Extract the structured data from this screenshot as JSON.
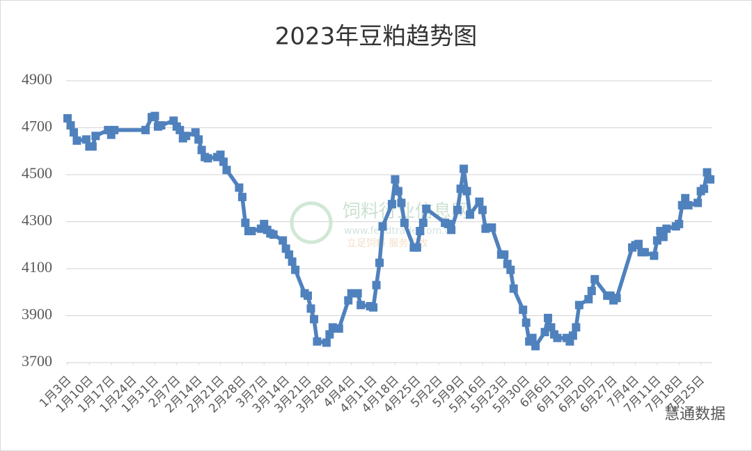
{
  "chart_data": {
    "type": "line",
    "title": "2023年豆粕趋势图",
    "x": [
      "2023-01-03",
      "2023-01-04",
      "2023-01-05",
      "2023-01-06",
      "2023-01-09",
      "2023-01-10",
      "2023-01-11",
      "2023-01-12",
      "2023-01-16",
      "2023-01-17",
      "2023-01-18",
      "2023-01-28",
      "2023-01-30",
      "2023-01-31",
      "2023-02-01",
      "2023-02-02",
      "2023-02-06",
      "2023-02-07",
      "2023-02-08",
      "2023-02-09",
      "2023-02-10",
      "2023-02-13",
      "2023-02-14",
      "2023-02-15",
      "2023-02-16",
      "2023-02-17",
      "2023-02-20",
      "2023-02-21",
      "2023-02-22",
      "2023-02-23",
      "2023-02-27",
      "2023-02-28",
      "2023-03-01",
      "2023-03-02",
      "2023-03-03",
      "2023-03-06",
      "2023-03-07",
      "2023-03-08",
      "2023-03-09",
      "2023-03-10",
      "2023-03-13",
      "2023-03-14",
      "2023-03-15",
      "2023-03-16",
      "2023-03-17",
      "2023-03-20",
      "2023-03-21",
      "2023-03-22",
      "2023-03-23",
      "2023-03-24",
      "2023-03-27",
      "2023-03-28",
      "2023-03-29",
      "2023-03-30",
      "2023-03-31",
      "2023-04-03",
      "2023-04-04",
      "2023-04-06",
      "2023-04-07",
      "2023-04-10",
      "2023-04-11",
      "2023-04-12",
      "2023-04-13",
      "2023-04-14",
      "2023-04-17",
      "2023-04-18",
      "2023-04-19",
      "2023-04-20",
      "2023-04-21",
      "2023-04-24",
      "2023-04-25",
      "2023-04-26",
      "2023-04-27",
      "2023-04-28",
      "2023-05-04",
      "2023-05-05",
      "2023-05-06",
      "2023-05-08",
      "2023-05-09",
      "2023-05-10",
      "2023-05-11",
      "2023-05-12",
      "2023-05-15",
      "2023-05-16",
      "2023-05-17",
      "2023-05-18",
      "2023-05-19",
      "2023-05-22",
      "2023-05-23",
      "2023-05-24",
      "2023-05-25",
      "2023-05-26",
      "2023-05-29",
      "2023-05-30",
      "2023-05-31",
      "2023-06-01",
      "2023-06-02",
      "2023-06-05",
      "2023-06-06",
      "2023-06-07",
      "2023-06-08",
      "2023-06-09",
      "2023-06-12",
      "2023-06-13",
      "2023-06-14",
      "2023-06-15",
      "2023-06-16",
      "2023-06-19",
      "2023-06-20",
      "2023-06-21",
      "2023-06-25",
      "2023-06-26",
      "2023-06-27",
      "2023-06-28",
      "2023-07-03",
      "2023-07-04",
      "2023-07-05",
      "2023-07-06",
      "2023-07-07",
      "2023-07-10",
      "2023-07-11",
      "2023-07-12",
      "2023-07-13",
      "2023-07-14",
      "2023-07-17",
      "2023-07-18",
      "2023-07-19",
      "2023-07-20",
      "2023-07-21",
      "2023-07-24",
      "2023-07-25",
      "2023-07-26",
      "2023-07-27",
      "2023-07-28"
    ],
    "series": [
      {
        "color": "#4f81bd",
        "values": [
          4740,
          4710,
          4680,
          4645,
          4650,
          4620,
          4620,
          4665,
          4690,
          4670,
          4690,
          4690,
          4745,
          4750,
          4705,
          4710,
          4730,
          4705,
          4690,
          4655,
          4665,
          4680,
          4650,
          4605,
          4575,
          4570,
          4575,
          4585,
          4555,
          4520,
          4445,
          4405,
          4295,
          4260,
          4260,
          4270,
          4290,
          4265,
          4250,
          4245,
          4220,
          4185,
          4160,
          4130,
          4095,
          3995,
          3985,
          3930,
          3885,
          3790,
          3785,
          3820,
          3850,
          3845,
          3845,
          3965,
          3995,
          3995,
          3945,
          3940,
          3935,
          4030,
          4125,
          4280,
          4375,
          4480,
          4430,
          4380,
          4295,
          4190,
          4190,
          4260,
          4295,
          4355,
          4295,
          4290,
          4265,
          4350,
          4440,
          4525,
          4430,
          4330,
          4385,
          4350,
          4270,
          4275,
          4275,
          4160,
          4160,
          4120,
          4095,
          4015,
          3925,
          3870,
          3790,
          3805,
          3770,
          3830,
          3890,
          3850,
          3820,
          3805,
          3805,
          3790,
          3815,
          3850,
          3945,
          3970,
          4005,
          4055,
          3985,
          3985,
          3965,
          3975,
          4190,
          4200,
          4205,
          4170,
          4170,
          4155,
          4220,
          4260,
          4235,
          4270,
          4280,
          4290,
          4370,
          4400,
          4370,
          4380,
          4430,
          4440,
          4510,
          4480
        ]
      }
    ],
    "xlim": [
      "2023-01-03",
      "2023-07-28"
    ],
    "xticks": [
      {
        "value": "2023-01-03",
        "label": "1月3日"
      },
      {
        "value": "2023-01-10",
        "label": "1月10日"
      },
      {
        "value": "2023-01-17",
        "label": "1月17日"
      },
      {
        "value": "2023-01-24",
        "label": "1月24日"
      },
      {
        "value": "2023-01-31",
        "label": "1月31日"
      },
      {
        "value": "2023-02-07",
        "label": "2月7日"
      },
      {
        "value": "2023-02-14",
        "label": "2月14日"
      },
      {
        "value": "2023-02-21",
        "label": "2月21日"
      },
      {
        "value": "2023-02-28",
        "label": "2月28日"
      },
      {
        "value": "2023-03-07",
        "label": "3月7日"
      },
      {
        "value": "2023-03-14",
        "label": "3月14日"
      },
      {
        "value": "2023-03-21",
        "label": "3月21日"
      },
      {
        "value": "2023-03-28",
        "label": "3月28日"
      },
      {
        "value": "2023-04-04",
        "label": "4月4日"
      },
      {
        "value": "2023-04-11",
        "label": "4月11日"
      },
      {
        "value": "2023-04-18",
        "label": "4月18日"
      },
      {
        "value": "2023-04-25",
        "label": "4月25日"
      },
      {
        "value": "2023-05-02",
        "label": "5月2日"
      },
      {
        "value": "2023-05-09",
        "label": "5月9日"
      },
      {
        "value": "2023-05-16",
        "label": "5月16日"
      },
      {
        "value": "2023-05-23",
        "label": "5月23日"
      },
      {
        "value": "2023-05-30",
        "label": "5月30日"
      },
      {
        "value": "2023-06-06",
        "label": "6月6日"
      },
      {
        "value": "2023-06-13",
        "label": "6月13日"
      },
      {
        "value": "2023-06-20",
        "label": "6月20日"
      },
      {
        "value": "2023-06-27",
        "label": "6月27日"
      },
      {
        "value": "2023-07-04",
        "label": "7月4日"
      },
      {
        "value": "2023-07-11",
        "label": "7月11日"
      },
      {
        "value": "2023-07-18",
        "label": "7月18日"
      },
      {
        "value": "2023-07-25",
        "label": "7月25日"
      }
    ],
    "ylim": [
      3700,
      4900
    ],
    "yticks": [
      3700,
      3900,
      4100,
      4300,
      4500,
      4700,
      4900
    ],
    "grid": true
  },
  "watermarks": [
    "饲料行业信息网",
    "www.feedtrade.com.cn",
    "立足饲料 服务畜牧",
    "慧通数据"
  ]
}
